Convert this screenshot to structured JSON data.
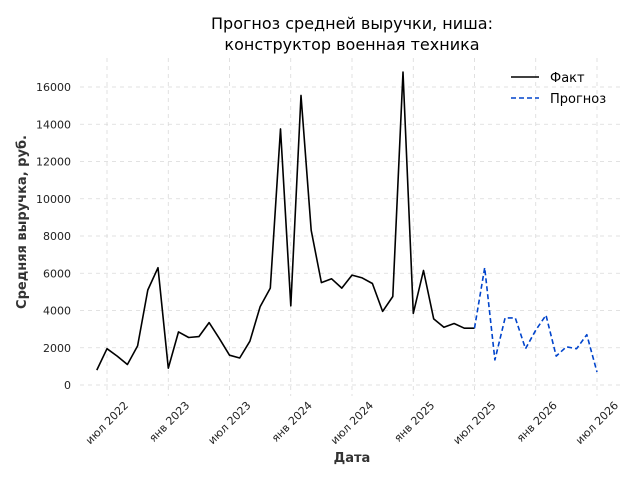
{
  "chart_data": {
    "type": "line",
    "title": "Прогноз средней выручки, ниша:",
    "subtitle": "конструктор военная техника",
    "xlabel": "Дата",
    "ylabel": "Средняя выручка, руб.",
    "ylim": [
      0,
      17000
    ],
    "yticks": [
      0,
      2000,
      4000,
      6000,
      8000,
      10000,
      12000,
      14000,
      16000
    ],
    "xticks": [
      {
        "date": "2022-07",
        "label": "июл 2022"
      },
      {
        "date": "2023-01",
        "label": "янв 2023"
      },
      {
        "date": "2023-07",
        "label": "июл 2023"
      },
      {
        "date": "2024-01",
        "label": "янв 2024"
      },
      {
        "date": "2024-07",
        "label": "июл 2024"
      },
      {
        "date": "2025-01",
        "label": "янв 2025"
      },
      {
        "date": "2025-07",
        "label": "июл 2025"
      },
      {
        "date": "2026-01",
        "label": "янв 2026"
      },
      {
        "date": "2026-07",
        "label": "июл 2026"
      }
    ],
    "grid": true,
    "legend_position": "top-right",
    "series": [
      {
        "name": "Факт",
        "color": "#000000",
        "style": "solid",
        "x": [
          "2022-06",
          "2022-07",
          "2022-08",
          "2022-09",
          "2022-10",
          "2022-11",
          "2022-12",
          "2023-01",
          "2023-02",
          "2023-03",
          "2023-04",
          "2023-05",
          "2023-06",
          "2023-07",
          "2023-08",
          "2023-09",
          "2023-10",
          "2023-11",
          "2023-12",
          "2024-01",
          "2024-02",
          "2024-03",
          "2024-04",
          "2024-05",
          "2024-06",
          "2024-07",
          "2024-08",
          "2024-09",
          "2024-10",
          "2024-11",
          "2024-12",
          "2025-01",
          "2025-02",
          "2025-03",
          "2025-04",
          "2025-05",
          "2025-06",
          "2025-07"
        ],
        "y": [
          800,
          1950,
          1550,
          1100,
          2100,
          5100,
          6300,
          900,
          2850,
          2550,
          2600,
          3350,
          2500,
          1600,
          1450,
          2350,
          4200,
          5200,
          13750,
          4250,
          15550,
          8300,
          5500,
          5700,
          5200,
          5900,
          5750,
          5450,
          3950,
          4750,
          16800,
          3850,
          6150,
          3550,
          3100,
          3300,
          3050,
          3050
        ]
      },
      {
        "name": "Прогноз",
        "color": "#0044cc",
        "style": "dashed",
        "x": [
          "2025-07",
          "2025-08",
          "2025-09",
          "2025-10",
          "2025-11",
          "2025-12",
          "2026-01",
          "2026-02",
          "2026-03",
          "2026-04",
          "2026-05",
          "2026-06",
          "2026-07"
        ],
        "y": [
          3050,
          6300,
          1350,
          3600,
          3600,
          1950,
          2950,
          3750,
          1550,
          2050,
          1950,
          2700,
          700
        ]
      }
    ]
  }
}
